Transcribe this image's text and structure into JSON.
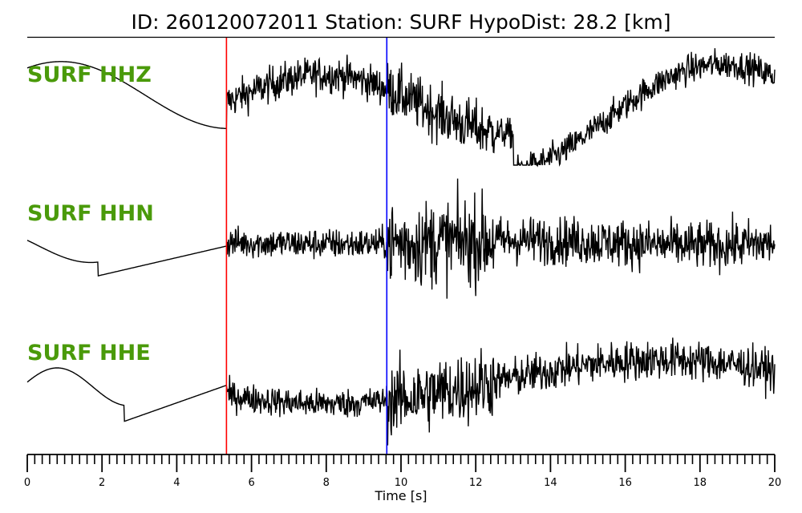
{
  "chart_data": {
    "type": "line",
    "title": "ID: 260120072011   Station: SURF   HypoDist:     28.2 [km]",
    "xlabel": "Time [s]",
    "ylabel": "",
    "xlim": [
      0,
      20
    ],
    "x_ticks": [
      "0",
      "2",
      "4",
      "6",
      "8",
      "10",
      "12",
      "14",
      "16",
      "18",
      "20"
    ],
    "grid": false,
    "label_color": "#4a9a0a",
    "trace_color": "#000000",
    "picks": [
      {
        "phase": "P",
        "time": 5.33,
        "color": "#ff0000"
      },
      {
        "phase": "S",
        "time": 9.62,
        "color": "#0000ff"
      }
    ],
    "series": [
      {
        "name": "SURF HHZ"
      },
      {
        "name": "SURF HHN"
      },
      {
        "name": "SURF HHE"
      }
    ]
  }
}
